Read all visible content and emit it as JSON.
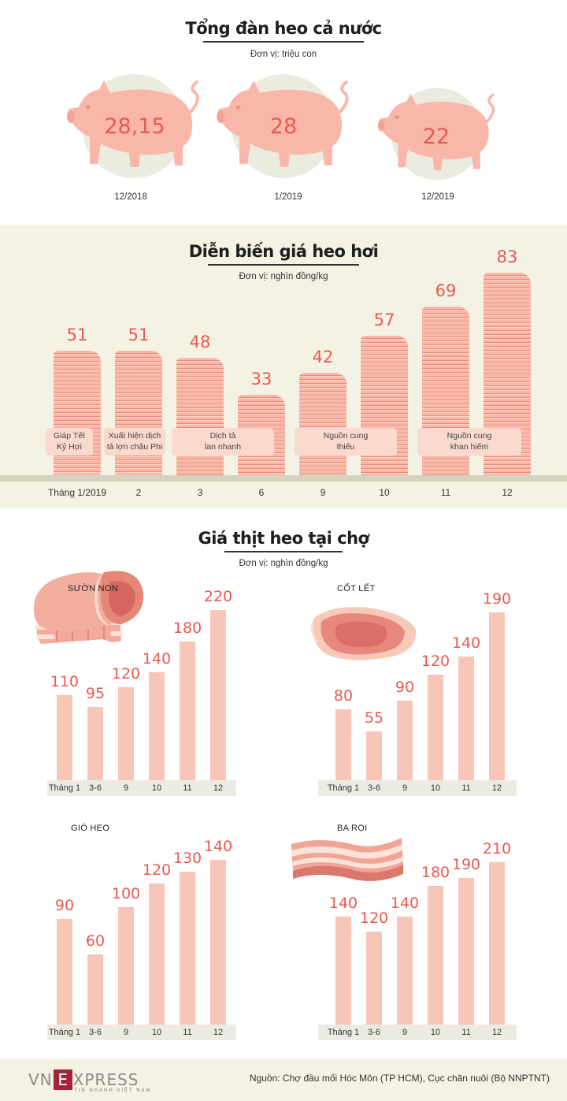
{
  "herd": {
    "title": "Tổng đàn heo cả nước",
    "unit": "Đơn vị: triệu con",
    "items": [
      {
        "value": "28,15",
        "label": "12/2018"
      },
      {
        "value": "28",
        "label": "1/2019"
      },
      {
        "value": "22",
        "label": "12/2019"
      }
    ]
  },
  "live_price": {
    "title": "Diễn biến giá heo hơi",
    "unit": "Đơn vị: nghìn đồng/kg",
    "notes": [
      {
        "line1": "Giáp Tết",
        "line2": "Kỷ Hợi"
      },
      {
        "line1": "Xuất hiện dịch",
        "line2": "tả lợn châu Phi"
      },
      {
        "line1": "Dịch tả",
        "line2": "lan nhanh"
      },
      {
        "line1": "Nguồn cung",
        "line2": "thiếu"
      },
      {
        "line1": "Nguồn cung",
        "line2": "khan hiếm"
      }
    ]
  },
  "market": {
    "title": "Giá thịt heo tại chợ",
    "unit": "Đơn vị: nghìn đồng/kg"
  },
  "chart_data": [
    {
      "type": "bar",
      "title": "Tổng đàn heo cả nước",
      "categories": [
        "12/2018",
        "1/2019",
        "12/2019"
      ],
      "values": [
        28.15,
        28,
        22
      ]
    },
    {
      "type": "bar",
      "title": "Diễn biến giá heo hơi",
      "categories": [
        "Tháng 1/2019",
        "2",
        "3",
        "6",
        "9",
        "10",
        "11",
        "12"
      ],
      "values": [
        51,
        51,
        48,
        33,
        42,
        57,
        69,
        83
      ]
    },
    {
      "type": "bar",
      "title": "SƯỜN NON",
      "categories": [
        "Tháng 1",
        "3-6",
        "9",
        "10",
        "11",
        "12"
      ],
      "values": [
        110,
        95,
        120,
        140,
        180,
        220
      ]
    },
    {
      "type": "bar",
      "title": "CỐT LẾT",
      "categories": [
        "Tháng 1",
        "3-6",
        "9",
        "10",
        "11",
        "12"
      ],
      "values": [
        80,
        55,
        90,
        120,
        140,
        190
      ]
    },
    {
      "type": "bar",
      "title": "GIÒ HEO",
      "categories": [
        "Tháng 1",
        "3-6",
        "9",
        "10",
        "11",
        "12"
      ],
      "values": [
        90,
        60,
        100,
        120,
        130,
        140
      ]
    },
    {
      "type": "bar",
      "title": "BA RỌI",
      "categories": [
        "Tháng 1",
        "3-6",
        "9",
        "10",
        "11",
        "12"
      ],
      "values": [
        140,
        120,
        140,
        180,
        190,
        210
      ]
    }
  ],
  "footer": {
    "logo_left": "VN",
    "logo_box": "E",
    "logo_right": "XPRESS",
    "logo_sub": "TIN NHANH VIỆT NAM",
    "source": "Nguồn: Chợ đầu mối Hóc Môn (TP HCM), Cục chăn nuôi (Bộ NNPTNT)"
  },
  "colors": {
    "accent": "#e85a52",
    "pig": "#f8b7a8",
    "panel": "#f4f2e3",
    "bar": "#f8c5b9"
  }
}
